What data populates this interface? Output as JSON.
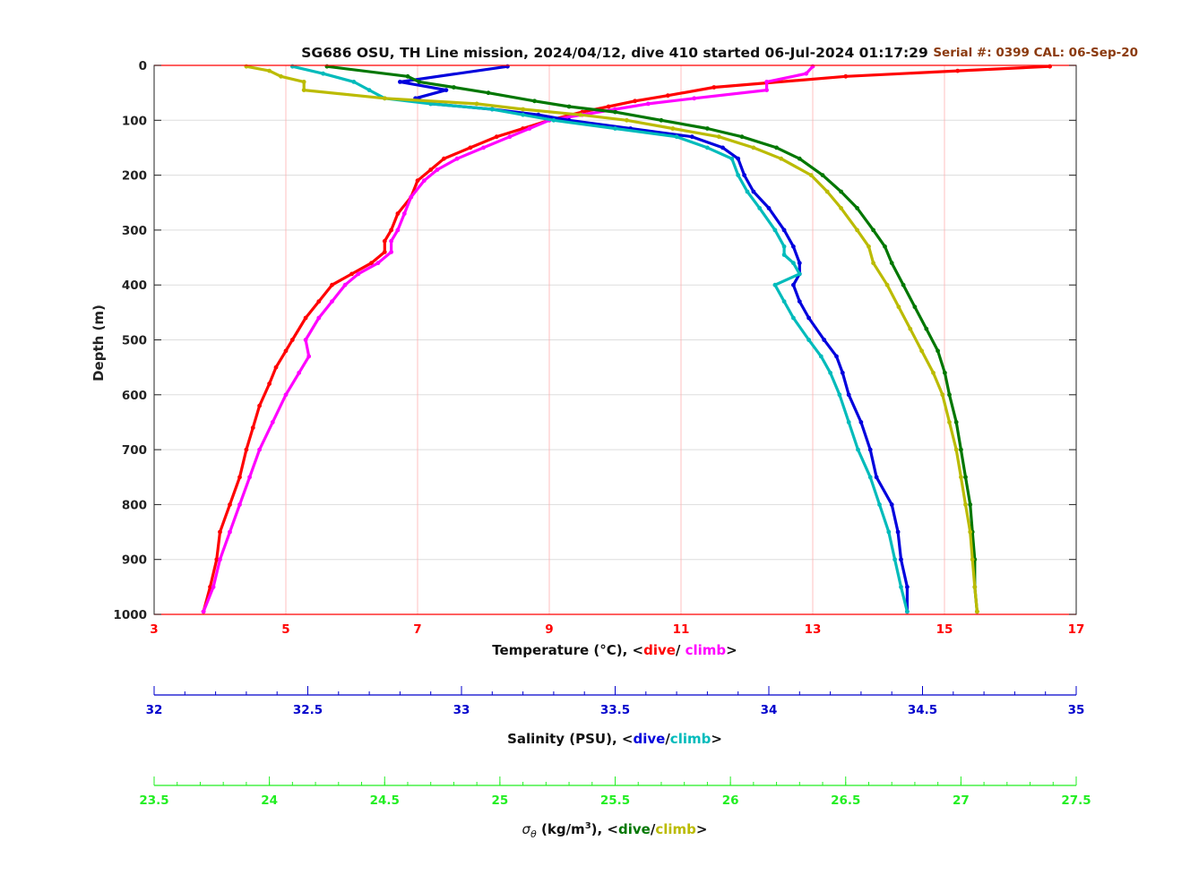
{
  "chart_data": {
    "type": "scatter",
    "title": "SG686 OSU, TH Line mission, 2024/04/12, dive 410 started 06-Jul-2024 01:17:29",
    "calibration": "Serial #: 0399  CAL: 06-Sep-20",
    "y_axis": {
      "label": "Depth (m)",
      "range": [
        0,
        1000
      ],
      "reversed": true,
      "ticks": [
        "0",
        "100",
        "200",
        "300",
        "400",
        "500",
        "600",
        "700",
        "800",
        "900",
        "1000"
      ]
    },
    "x_axes": [
      {
        "id": "temperature",
        "label_main": "Temperature (°C), <",
        "label_dive": "dive",
        "label_sep": "/ ",
        "label_climb": "climb",
        "label_end": ">",
        "range": [
          3,
          17
        ],
        "ticks": [
          "3",
          "5",
          "7",
          "9",
          "11",
          "13",
          "15",
          "17"
        ],
        "color": "#ff0000",
        "dive_color": "#ff0000",
        "climb_color": "#ff00ff"
      },
      {
        "id": "salinity",
        "label_main": "Salinity (PSU), <",
        "label_dive": "dive",
        "label_sep": "/",
        "label_climb": "climb",
        "label_end": ">",
        "range": [
          32,
          35
        ],
        "ticks": [
          "32",
          "32.5",
          "33",
          "33.5",
          "34",
          "34.5",
          "35"
        ],
        "color": "#0000cc",
        "dive_color": "#0000dd",
        "climb_color": "#00bbbb"
      },
      {
        "id": "sigma",
        "label_main": "σθ (kg/m3), <",
        "label_sym": "σ",
        "label_sub": "θ",
        "label_unit": " (kg/m",
        "label_sup": "3",
        "label_unit_end": "), <",
        "label_dive": "dive",
        "label_sep": "/",
        "label_climb": "climb",
        "label_end": ">",
        "range": [
          23.5,
          27.5
        ],
        "ticks": [
          "23.5",
          "24",
          "24.5",
          "25",
          "25.5",
          "26",
          "26.5",
          "27",
          "27.5"
        ],
        "color": "#22ee22",
        "dive_color": "#007700",
        "climb_color": "#bbbb00"
      }
    ],
    "series": [
      {
        "name": "dive",
        "variable": "temperature",
        "color": "#ff0000",
        "depth": [
          2,
          10,
          20,
          40,
          55,
          65,
          75,
          85,
          100,
          115,
          130,
          150,
          170,
          190,
          210,
          240,
          270,
          300,
          320,
          340,
          360,
          380,
          400,
          430,
          460,
          500,
          520,
          550,
          580,
          620,
          660,
          700,
          750,
          800,
          850,
          900,
          950,
          995
        ],
        "values": [
          16.6,
          15.2,
          13.5,
          11.5,
          10.8,
          10.3,
          9.9,
          9.5,
          9.0,
          8.6,
          8.2,
          7.8,
          7.4,
          7.2,
          7.0,
          6.9,
          6.7,
          6.6,
          6.5,
          6.5,
          6.3,
          6.0,
          5.7,
          5.5,
          5.3,
          5.1,
          5.0,
          4.85,
          4.75,
          4.6,
          4.5,
          4.4,
          4.3,
          4.15,
          4.0,
          3.95,
          3.85,
          3.75
        ]
      },
      {
        "name": "climb",
        "variable": "temperature",
        "color": "#ff00ff",
        "depth": [
          2,
          15,
          30,
          45,
          60,
          70,
          80,
          90,
          100,
          115,
          130,
          150,
          170,
          190,
          210,
          240,
          270,
          300,
          320,
          340,
          360,
          380,
          400,
          430,
          460,
          500,
          530,
          560,
          600,
          650,
          700,
          750,
          800,
          850,
          900,
          950,
          995
        ],
        "values": [
          13.0,
          12.9,
          12.3,
          12.3,
          11.2,
          10.5,
          10.0,
          9.5,
          9.0,
          8.7,
          8.4,
          8.0,
          7.6,
          7.3,
          7.1,
          6.9,
          6.8,
          6.7,
          6.6,
          6.6,
          6.4,
          6.1,
          5.9,
          5.7,
          5.5,
          5.3,
          5.35,
          5.2,
          5.0,
          4.8,
          4.6,
          4.45,
          4.3,
          4.15,
          4.0,
          3.9,
          3.75
        ]
      },
      {
        "name": "dive",
        "variable": "salinity",
        "color": "#0000dd",
        "depth": [
          2,
          30,
          45,
          60,
          70,
          80,
          90,
          100,
          115,
          130,
          150,
          170,
          200,
          230,
          260,
          300,
          330,
          360,
          380,
          400,
          430,
          460,
          500,
          530,
          560,
          600,
          650,
          700,
          750,
          800,
          850,
          900,
          950,
          995
        ],
        "values": [
          33.15,
          32.8,
          32.95,
          32.85,
          32.9,
          33.1,
          33.25,
          33.35,
          33.55,
          33.75,
          33.85,
          33.9,
          33.92,
          33.95,
          34.0,
          34.05,
          34.08,
          34.1,
          34.1,
          34.08,
          34.1,
          34.13,
          34.18,
          34.22,
          34.24,
          34.26,
          34.3,
          34.33,
          34.35,
          34.4,
          34.42,
          34.43,
          34.45,
          34.45
        ]
      },
      {
        "name": "climb",
        "variable": "salinity",
        "color": "#00bbbb",
        "depth": [
          2,
          15,
          30,
          45,
          60,
          70,
          80,
          90,
          100,
          115,
          130,
          150,
          170,
          200,
          230,
          260,
          300,
          330,
          345,
          360,
          380,
          400,
          430,
          460,
          500,
          530,
          560,
          600,
          650,
          700,
          750,
          800,
          850,
          900,
          950,
          995
        ],
        "values": [
          32.45,
          32.55,
          32.65,
          32.7,
          32.75,
          32.9,
          33.1,
          33.2,
          33.3,
          33.5,
          33.7,
          33.8,
          33.88,
          33.9,
          33.93,
          33.97,
          34.02,
          34.05,
          34.05,
          34.08,
          34.1,
          34.02,
          34.05,
          34.08,
          34.13,
          34.17,
          34.2,
          34.23,
          34.26,
          34.29,
          34.33,
          34.36,
          34.39,
          34.41,
          34.43,
          34.45
        ]
      },
      {
        "name": "dive",
        "variable": "sigma",
        "color": "#007700",
        "depth": [
          2,
          20,
          30,
          40,
          50,
          65,
          75,
          85,
          100,
          115,
          130,
          150,
          170,
          200,
          230,
          260,
          300,
          330,
          360,
          400,
          440,
          480,
          520,
          560,
          600,
          650,
          700,
          750,
          800,
          850,
          900,
          950,
          995
        ],
        "values": [
          24.25,
          24.6,
          24.65,
          24.8,
          24.95,
          25.15,
          25.3,
          25.5,
          25.7,
          25.9,
          26.05,
          26.2,
          26.3,
          26.4,
          26.48,
          26.55,
          26.62,
          26.67,
          26.7,
          26.75,
          26.8,
          26.85,
          26.9,
          26.93,
          26.95,
          26.98,
          27.0,
          27.02,
          27.04,
          27.05,
          27.06,
          27.06,
          27.07
        ]
      },
      {
        "name": "climb",
        "variable": "sigma",
        "color": "#bbbb00",
        "depth": [
          2,
          10,
          20,
          30,
          45,
          60,
          70,
          80,
          90,
          100,
          115,
          130,
          150,
          170,
          200,
          230,
          260,
          300,
          330,
          360,
          400,
          440,
          480,
          520,
          560,
          600,
          650,
          700,
          750,
          800,
          850,
          900,
          950,
          995
        ],
        "values": [
          23.9,
          24.0,
          24.05,
          24.15,
          24.15,
          24.5,
          24.9,
          25.1,
          25.35,
          25.55,
          25.75,
          25.95,
          26.1,
          26.22,
          26.35,
          26.42,
          26.48,
          26.55,
          26.6,
          26.62,
          26.68,
          26.73,
          26.78,
          26.83,
          26.88,
          26.92,
          26.95,
          26.98,
          27.0,
          27.02,
          27.04,
          27.05,
          27.06,
          27.07
        ]
      }
    ],
    "grid": true
  }
}
